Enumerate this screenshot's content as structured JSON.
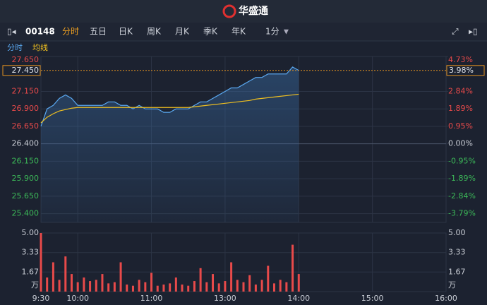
{
  "ui": {
    "brand": "华盛通",
    "code": "00148",
    "tabs": [
      "分时",
      "五日",
      "日K",
      "周K",
      "月K",
      "季K",
      "年K"
    ],
    "interval": "1分"
  },
  "chart_data": {
    "type": "line",
    "x": [
      0,
      5,
      10,
      15,
      20,
      25,
      30,
      35,
      40,
      45,
      50,
      55,
      60,
      65,
      70,
      75,
      80,
      85,
      90,
      95,
      100,
      105,
      110,
      115,
      120,
      125,
      130,
      135,
      140,
      145,
      150,
      155,
      160,
      165,
      170,
      175,
      180,
      185,
      190,
      195,
      200,
      205,
      210
    ],
    "xlim": [
      0,
      330
    ],
    "xticks": [
      {
        "value": 0,
        "label": "9:30"
      },
      {
        "value": 30,
        "label": "10:00"
      },
      {
        "value": 90,
        "label": "11:00"
      },
      {
        "value": 150,
        "label": "13:00"
      },
      {
        "value": 210,
        "label": "14:00"
      },
      {
        "value": 270,
        "label": "15:00"
      },
      {
        "value": 330,
        "label": "16:00"
      }
    ],
    "series": [
      {
        "name": "分时",
        "color": "#5aa8f0",
        "values": [
          26.65,
          26.9,
          26.95,
          27.05,
          27.1,
          27.05,
          26.95,
          26.95,
          26.95,
          26.95,
          26.95,
          27.0,
          27.0,
          26.95,
          26.95,
          26.9,
          26.95,
          26.9,
          26.9,
          26.9,
          26.85,
          26.85,
          26.9,
          26.9,
          26.9,
          26.95,
          27.0,
          27.0,
          27.05,
          27.1,
          27.15,
          27.2,
          27.2,
          27.25,
          27.3,
          27.35,
          27.35,
          27.4,
          27.4,
          27.4,
          27.4,
          27.5,
          27.45
        ]
      },
      {
        "name": "均线",
        "color": "#f0c020",
        "values": [
          26.7,
          26.78,
          26.83,
          26.87,
          26.89,
          26.91,
          26.92,
          26.92,
          26.92,
          26.92,
          26.92,
          26.92,
          26.92,
          26.92,
          26.92,
          26.92,
          26.92,
          26.92,
          26.92,
          26.92,
          26.92,
          26.92,
          26.92,
          26.92,
          26.92,
          26.93,
          26.94,
          26.95,
          26.96,
          26.97,
          26.98,
          26.99,
          27.0,
          27.01,
          27.02,
          27.04,
          27.05,
          27.06,
          27.07,
          27.08,
          27.09,
          27.1,
          27.11
        ]
      }
    ],
    "ylim": [
      25.275,
      27.65
    ],
    "yticks": [
      {
        "value": 27.65,
        "label": "27.650"
      },
      {
        "value": 27.15,
        "label": "27.150"
      },
      {
        "value": 26.9,
        "label": "26.900"
      },
      {
        "value": 26.65,
        "label": "26.650"
      },
      {
        "value": 26.4,
        "label": "26.400"
      },
      {
        "value": 26.15,
        "label": "26.150"
      },
      {
        "value": 25.9,
        "label": "25.900"
      },
      {
        "value": 25.65,
        "label": "25.650"
      },
      {
        "value": 25.4,
        "label": "25.400"
      }
    ],
    "y2lim": [
      -4.26,
      4.73
    ],
    "y2ticks": [
      {
        "value": 4.73,
        "label": "4.73%"
      },
      {
        "value": 2.84,
        "label": "2.84%"
      },
      {
        "value": 1.89,
        "label": "1.89%"
      },
      {
        "value": 0.95,
        "label": "0.95%"
      },
      {
        "value": 0,
        "label": "0.00%"
      },
      {
        "value": -0.95,
        "label": "-0.95%"
      },
      {
        "value": -1.89,
        "label": "-1.89%"
      },
      {
        "value": -2.84,
        "label": "-2.84%"
      },
      {
        "value": -3.79,
        "label": "-3.79%"
      }
    ],
    "last_price": {
      "value": 27.45,
      "label": "27.450"
    },
    "last_change": {
      "value": 3.98,
      "label": "3.98%"
    },
    "volume": {
      "color": "#e84a4a",
      "unit": "万",
      "ylim": [
        0,
        5
      ],
      "yticks": [
        {
          "value": 5,
          "label": "5.00"
        },
        {
          "value": 3.33,
          "label": "3.33"
        },
        {
          "value": 1.67,
          "label": "1.67"
        }
      ],
      "values": [
        5.0,
        1.2,
        2.5,
        1.0,
        3.0,
        1.5,
        0.8,
        1.2,
        0.9,
        1.0,
        1.5,
        0.7,
        0.8,
        2.5,
        0.6,
        0.5,
        1.0,
        0.8,
        1.6,
        0.5,
        0.6,
        0.7,
        1.2,
        0.6,
        0.5,
        0.9,
        2.0,
        0.8,
        1.5,
        0.7,
        0.9,
        2.5,
        1.0,
        0.8,
        1.4,
        0.6,
        1.0,
        2.2,
        0.7,
        1.0,
        0.8,
        4.0,
        1.5
      ]
    }
  }
}
